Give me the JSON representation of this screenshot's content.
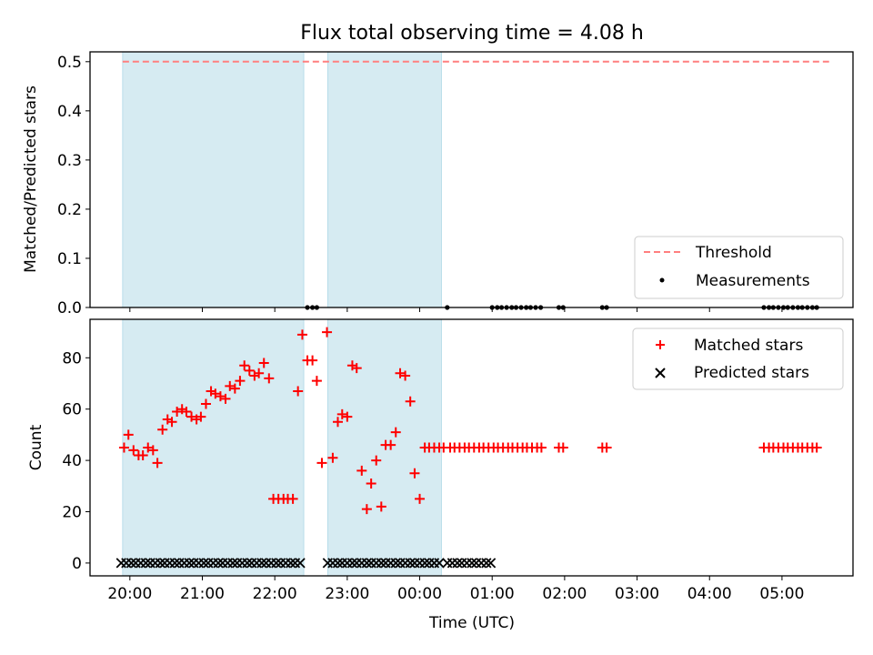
{
  "chart_data": {
    "title": "Flux total observing time = 4.08 h",
    "xlabel": "Time (UTC)",
    "x_unit": "hours UTC (values > 24 are after midnight of the following day)",
    "xlim": [
      19.45,
      29.98
    ],
    "xticks": [
      {
        "value": 20,
        "label": "20:00"
      },
      {
        "value": 21,
        "label": "21:00"
      },
      {
        "value": 22,
        "label": "22:00"
      },
      {
        "value": 23,
        "label": "23:00"
      },
      {
        "value": 24,
        "label": "00:00"
      },
      {
        "value": 25,
        "label": "01:00"
      },
      {
        "value": 26,
        "label": "02:00"
      },
      {
        "value": 27,
        "label": "03:00"
      },
      {
        "value": 28,
        "label": "04:00"
      },
      {
        "value": 29,
        "label": "05:00"
      }
    ],
    "observing_windows": [
      [
        19.9,
        22.4
      ],
      [
        22.73,
        24.3
      ]
    ],
    "panels": [
      {
        "type": "line+scatter",
        "ylabel": "Matched/Predicted stars",
        "ylim": [
          0,
          0.52
        ],
        "yticks": [
          "0.0",
          "0.1",
          "0.2",
          "0.3",
          "0.4",
          "0.5"
        ],
        "threshold": {
          "name": "Threshold",
          "color": "#ff7f7f",
          "y": 0.5,
          "x_range": [
            19.9,
            29.65
          ]
        },
        "legend": {
          "position": "lower-right",
          "entries": [
            "Threshold",
            "Measurements"
          ]
        },
        "measurements": {
          "name": "Measurements",
          "color": "#000000",
          "x": [
            22.45,
            22.52,
            22.58,
            24.38,
            25.0,
            25.07,
            25.13,
            25.2,
            25.27,
            25.33,
            25.4,
            25.47,
            25.53,
            25.6,
            25.67,
            25.92,
            25.98,
            26.52,
            26.58,
            28.75,
            28.82,
            28.88,
            28.95,
            29.02,
            29.08,
            29.15,
            29.22,
            29.28,
            29.35,
            29.42,
            29.48
          ],
          "y": [
            0,
            0,
            0,
            0,
            0,
            0,
            0,
            0,
            0,
            0,
            0,
            0,
            0,
            0,
            0,
            0,
            0,
            0,
            0,
            0,
            0,
            0,
            0,
            0,
            0,
            0,
            0,
            0,
            0,
            0,
            0
          ]
        }
      },
      {
        "type": "scatter",
        "ylabel": "Count",
        "ylim": [
          -5,
          95
        ],
        "yticks": [
          "0",
          "20",
          "40",
          "60",
          "80"
        ],
        "legend": {
          "position": "top-right",
          "entries": [
            "Matched stars",
            "Predicted stars"
          ]
        },
        "series": [
          {
            "name": "Matched stars",
            "marker": "+",
            "color": "#ff0000",
            "x": [
              19.92,
              19.98,
              20.05,
              20.12,
              20.18,
              20.25,
              20.32,
              20.38,
              20.45,
              20.52,
              20.58,
              20.65,
              20.72,
              20.78,
              20.85,
              20.92,
              20.98,
              21.05,
              21.12,
              21.18,
              21.25,
              21.32,
              21.38,
              21.45,
              21.52,
              21.58,
              21.65,
              21.72,
              21.78,
              21.85,
              21.92,
              21.98,
              22.05,
              22.12,
              22.18,
              22.25,
              22.32,
              22.38,
              22.45,
              22.52,
              22.58,
              22.65,
              22.72,
              22.8,
              22.87,
              22.93,
              23.0,
              23.07,
              23.13,
              23.2,
              23.27,
              23.33,
              23.4,
              23.47,
              23.53,
              23.6,
              23.67,
              23.73,
              23.8,
              23.87,
              23.93,
              24.0,
              24.07,
              24.13,
              24.2,
              24.27,
              24.33,
              24.42,
              24.48,
              24.55,
              24.62,
              24.68,
              24.75,
              24.82,
              24.88,
              24.95,
              25.02,
              25.08,
              25.15,
              25.22,
              25.28,
              25.35,
              25.42,
              25.48,
              25.55,
              25.62,
              25.68,
              25.92,
              25.98,
              26.52,
              26.58,
              28.75,
              28.82,
              28.88,
              28.95,
              29.02,
              29.08,
              29.15,
              29.22,
              29.28,
              29.35,
              29.42,
              29.48
            ],
            "y": [
              45,
              50,
              44,
              42,
              42,
              45,
              44,
              39,
              52,
              56,
              55,
              59,
              60,
              59,
              57,
              56,
              57,
              62,
              67,
              66,
              65,
              64,
              69,
              68,
              71,
              77,
              75,
              73,
              74,
              78,
              72,
              25,
              25,
              25,
              25,
              25,
              67,
              89,
              79,
              79,
              71,
              39,
              90,
              41,
              55,
              58,
              57,
              77,
              76,
              36,
              21,
              31,
              40,
              22,
              46,
              46,
              51,
              74,
              73,
              63,
              35,
              25,
              45,
              45,
              45,
              45,
              45,
              45,
              45,
              45,
              45,
              45,
              45,
              45,
              45,
              45,
              45,
              45,
              45,
              45,
              45,
              45,
              45,
              45,
              45,
              45,
              45,
              45,
              45,
              45,
              45,
              45,
              45,
              45,
              45,
              45,
              45,
              45,
              45,
              45,
              45,
              45,
              45
            ]
          },
          {
            "name": "Predicted stars",
            "marker": "x",
            "color": "#000000",
            "x": [
              19.88,
              19.95,
              20.02,
              20.08,
              20.15,
              20.22,
              20.28,
              20.35,
              20.42,
              20.48,
              20.55,
              20.62,
              20.68,
              20.75,
              20.82,
              20.88,
              20.95,
              21.02,
              21.08,
              21.15,
              21.22,
              21.28,
              21.35,
              21.42,
              21.48,
              21.55,
              21.62,
              21.68,
              21.75,
              21.82,
              21.88,
              21.95,
              22.02,
              22.08,
              22.15,
              22.22,
              22.28,
              22.35,
              22.73,
              22.8,
              22.87,
              22.93,
              23.0,
              23.07,
              23.13,
              23.2,
              23.27,
              23.33,
              23.4,
              23.47,
              23.53,
              23.6,
              23.67,
              23.73,
              23.8,
              23.87,
              23.93,
              24.0,
              24.07,
              24.13,
              24.2,
              24.27,
              24.38,
              24.45,
              24.52,
              24.58,
              24.65,
              24.72,
              24.78,
              24.85,
              24.92,
              24.98
            ],
            "y": [
              0,
              0,
              0,
              0,
              0,
              0,
              0,
              0,
              0,
              0,
              0,
              0,
              0,
              0,
              0,
              0,
              0,
              0,
              0,
              0,
              0,
              0,
              0,
              0,
              0,
              0,
              0,
              0,
              0,
              0,
              0,
              0,
              0,
              0,
              0,
              0,
              0,
              0,
              0,
              0,
              0,
              0,
              0,
              0,
              0,
              0,
              0,
              0,
              0,
              0,
              0,
              0,
              0,
              0,
              0,
              0,
              0,
              0,
              0,
              0,
              0,
              0,
              0,
              0,
              0,
              0,
              0,
              0,
              0,
              0,
              0,
              0
            ]
          }
        ]
      }
    ],
    "colors": {
      "window_fill": "#add8e6",
      "threshold": "#ff7f7f",
      "matched": "#ff0000",
      "predicted": "#000000"
    }
  }
}
